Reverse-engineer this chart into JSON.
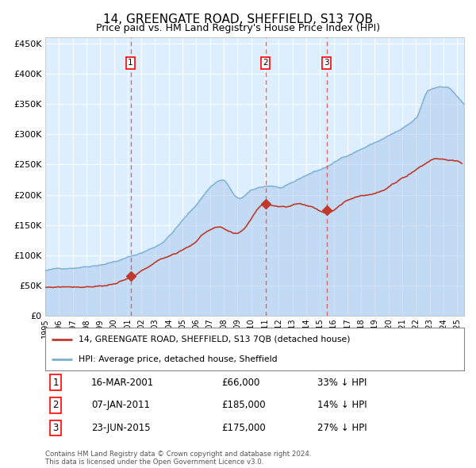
{
  "title": "14, GREENGATE ROAD, SHEFFIELD, S13 7QB",
  "subtitle": "Price paid vs. HM Land Registry's House Price Index (HPI)",
  "title_fontsize": 11,
  "subtitle_fontsize": 9,
  "background_color": "#ffffff",
  "plot_bg_color": "#ddeeff",
  "legend_line1": "14, GREENGATE ROAD, SHEFFIELD, S13 7QB (detached house)",
  "legend_line2": "HPI: Average price, detached house, Sheffield",
  "footer": "Contains HM Land Registry data © Crown copyright and database right 2024.\nThis data is licensed under the Open Government Licence v3.0.",
  "hpi_color": "#a8c8e8",
  "hpi_line_color": "#7bafd4",
  "price_color": "#c0392b",
  "sale_marker_color": "#c0392b",
  "vline_color": "#e05050",
  "annotations": [
    {
      "num": 1,
      "date": "16-MAR-2001",
      "price": 66000,
      "price_str": "£66,000",
      "label": "33% ↓ HPI",
      "x_year": 2001.21
    },
    {
      "num": 2,
      "date": "07-JAN-2011",
      "price": 185000,
      "price_str": "£185,000",
      "label": "14% ↓ HPI",
      "x_year": 2011.03
    },
    {
      "num": 3,
      "date": "23-JUN-2015",
      "price": 175000,
      "price_str": "£175,000",
      "label": "27% ↓ HPI",
      "x_year": 2015.48
    }
  ],
  "ylim": [
    0,
    460000
  ],
  "yticks": [
    0,
    50000,
    100000,
    150000,
    200000,
    250000,
    300000,
    350000,
    400000,
    450000
  ],
  "xlim_start": 1995.0,
  "xlim_end": 2025.5
}
